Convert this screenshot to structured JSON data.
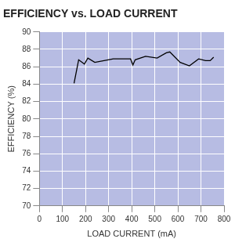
{
  "chart_data": {
    "type": "line",
    "title": "EFFICIENCY vs. LOAD CURRENT",
    "x_label": "LOAD CURRENT (mA)",
    "y_label": "EFFICIENCY (%)",
    "x": [
      150,
      170,
      195,
      210,
      240,
      280,
      320,
      360,
      395,
      405,
      415,
      460,
      510,
      550,
      565,
      610,
      650,
      690,
      720,
      740,
      755
    ],
    "values": [
      84.1,
      86.8,
      86.3,
      87.0,
      86.5,
      86.7,
      86.9,
      86.9,
      86.9,
      86.2,
      86.8,
      87.2,
      87.0,
      87.6,
      87.7,
      86.5,
      86.1,
      86.9,
      86.7,
      86.7,
      87.1
    ],
    "color": "#000000",
    "xlim": [
      0,
      800
    ],
    "xticks": [
      0,
      100,
      200,
      300,
      400,
      500,
      600,
      700,
      800
    ],
    "ylim": [
      70,
      90
    ],
    "yticks": [
      70,
      72,
      74,
      76,
      78,
      80,
      82,
      84,
      86,
      88,
      90
    ],
    "grid": true
  }
}
